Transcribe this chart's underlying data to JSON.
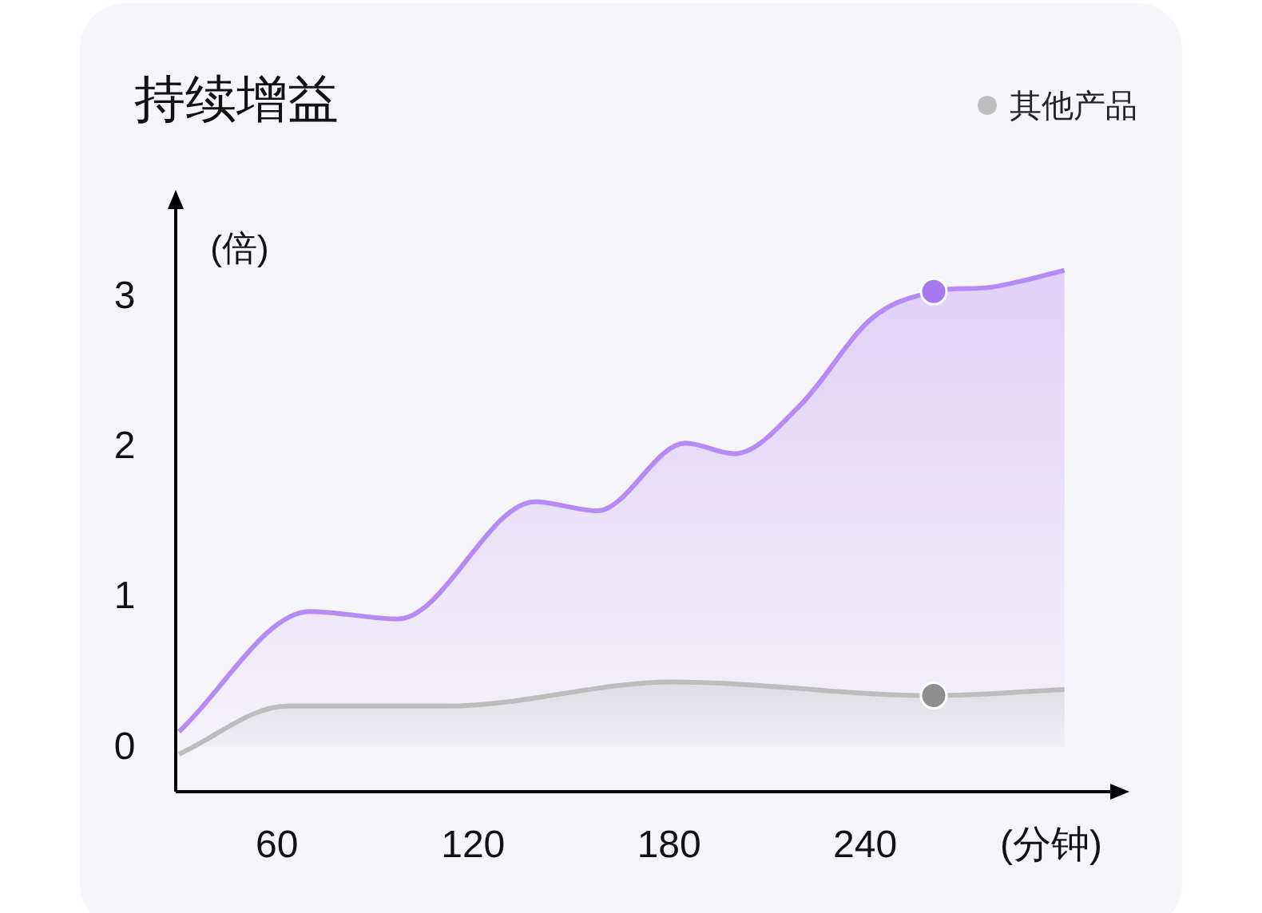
{
  "chart_data": {
    "type": "area",
    "title": "持续增益",
    "xlabel": "(分钟)",
    "ylabel": "(倍)",
    "xlim": [
      29,
      316
    ],
    "ylim": [
      -0.3,
      3.6
    ],
    "xticks": [
      60,
      120,
      180,
      240
    ],
    "yticks": [
      0,
      1,
      2,
      3
    ],
    "grid": false,
    "legend": "top right",
    "series": [
      {
        "color": "#b58cf5",
        "x": [
          30,
          70,
          97,
          139,
          158,
          185,
          200,
          220,
          242,
          261,
          279,
          301
        ],
        "values": [
          0.1,
          0.9,
          0.85,
          1.63,
          1.57,
          2.02,
          1.95,
          2.27,
          2.85,
          3.03,
          3.06,
          3.17
        ]
      },
      {
        "name": "其他产品",
        "color": "#bdbdbd",
        "x": [
          30,
          63,
          112,
          181,
          261,
          301
        ],
        "values": [
          -0.05,
          0.27,
          0.27,
          0.43,
          0.34,
          0.38
        ]
      },
      {
        "type": "scatter",
        "color": "#a779f0",
        "x": [
          261
        ],
        "values": [
          3.03
        ]
      },
      {
        "type": "scatter",
        "color": "#8f8f8f",
        "x": [
          261
        ],
        "values": [
          0.34
        ]
      }
    ]
  }
}
